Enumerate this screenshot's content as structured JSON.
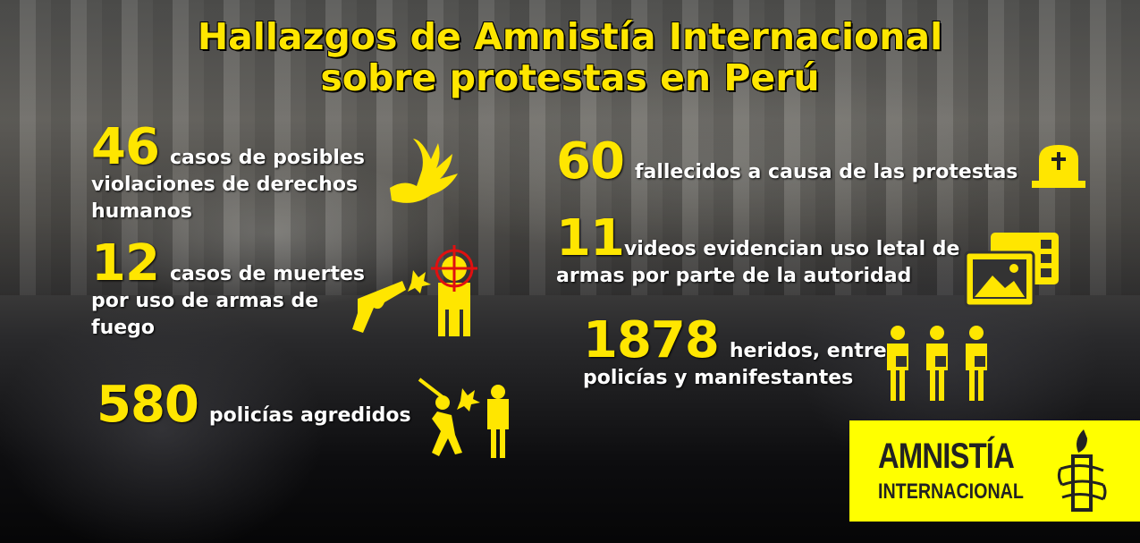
{
  "title": {
    "line1": "Hallazgos de Amnistía Internacional",
    "line2": "sobre protestas en Perú"
  },
  "colors": {
    "accent": "#ffe600",
    "text": "#ffffff",
    "logo_bg": "#ffff00"
  },
  "stats": [
    {
      "number": "46",
      "text": "casos de posibles violaciones de derechos humanos",
      "icon": "hand-icon"
    },
    {
      "number": "12",
      "text": "casos de muertes por uso de armas de fuego",
      "icon": "gun-target-icon"
    },
    {
      "number": "580",
      "text": "policías agredidos",
      "icon": "police-assault-icon"
    },
    {
      "number": "60",
      "text": "fallecidos a causa de las protestas",
      "icon": "tombstone-icon"
    },
    {
      "number": "11",
      "text": "videos evidencian uso letal de armas por parte de la autoridad",
      "icon": "video-image-icon"
    },
    {
      "number": "1878",
      "text": "heridos, entre policías y manifestantes",
      "icon": "injured-people-icon"
    }
  ],
  "logo": {
    "line1": "AMNISTÍA",
    "line2": "INTERNACIONAL",
    "icon": "candle-icon"
  }
}
